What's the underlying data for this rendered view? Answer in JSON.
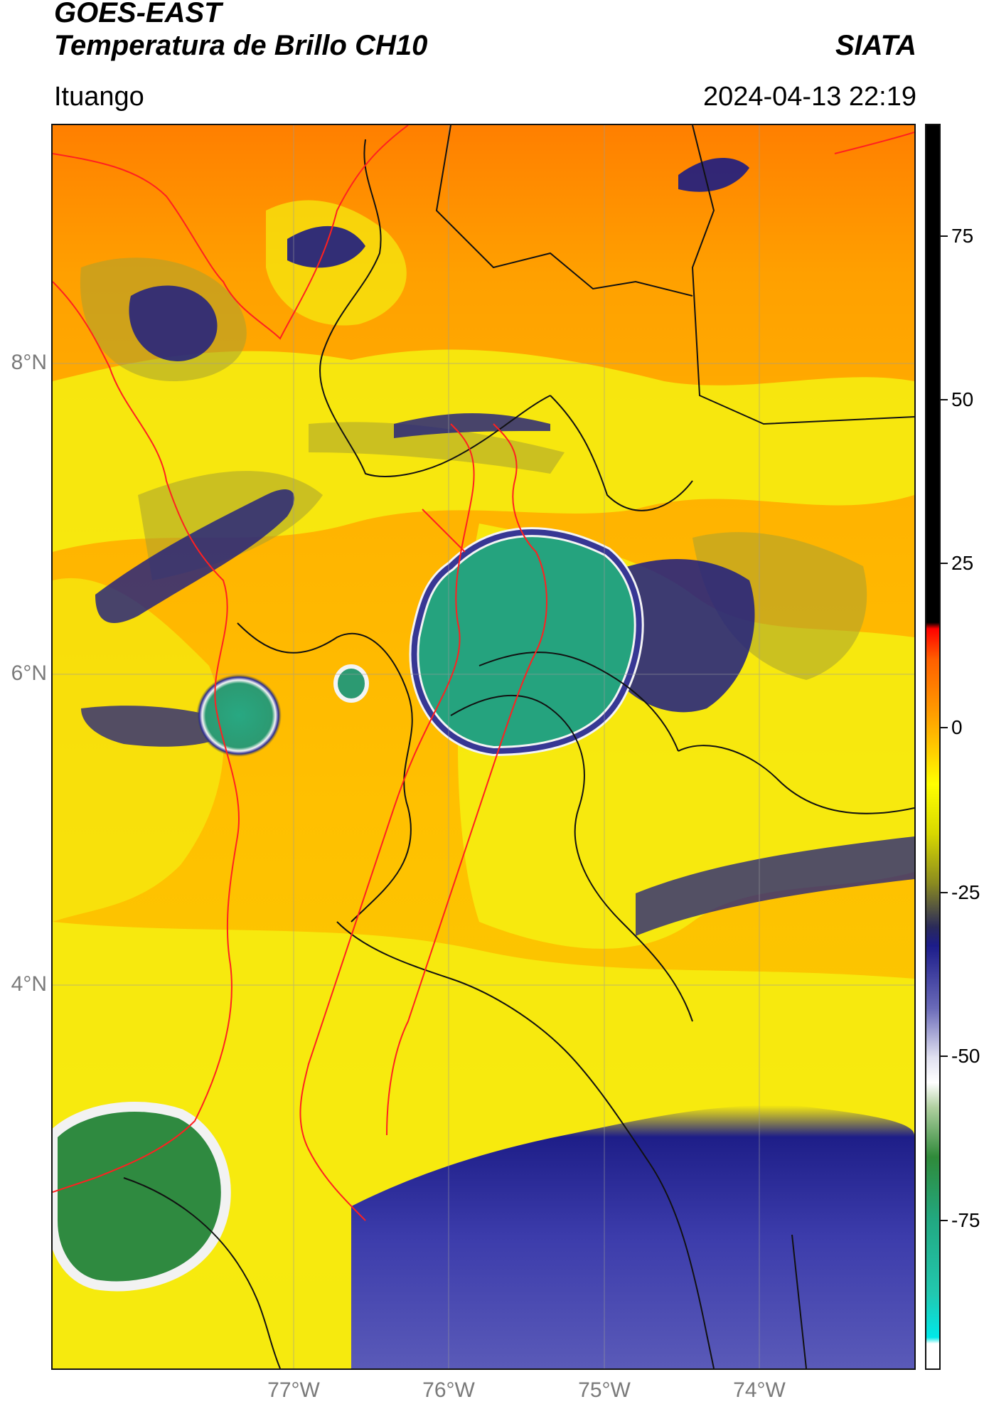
{
  "header": {
    "satellite": "GOES-EAST",
    "product": "Temperatura de Brillo CH10",
    "brand": "SIATA",
    "location": "Ituango",
    "timestamp": "2024-04-13 22:19"
  },
  "map": {
    "lat_ticks": [
      "8°N",
      "6°N",
      "4°N"
    ],
    "lon_ticks": [
      "77°W",
      "76°W",
      "75°W",
      "74°W"
    ],
    "colors": {
      "orange": "#ff8c00",
      "yellow": "#f7f000",
      "dark_blue": "#1a1a7a",
      "green": "#2aa37a",
      "white": "#f4f4f4",
      "border_black": "#111111",
      "border_red": "#ff2020"
    }
  },
  "colorbar": {
    "ticks": [
      "75",
      "50",
      "25",
      "0",
      "-25",
      "-50",
      "-75"
    ],
    "colors": {
      "black": "#000000",
      "red": "#ff0000",
      "orange": "#ff8c00",
      "yellow": "#ffff00",
      "olive": "#8a8a20",
      "navy": "#1c1c8a",
      "white": "#ffffff",
      "green": "#2f8a3a",
      "teal": "#22b8a0",
      "cyan": "#00e8e8"
    }
  }
}
